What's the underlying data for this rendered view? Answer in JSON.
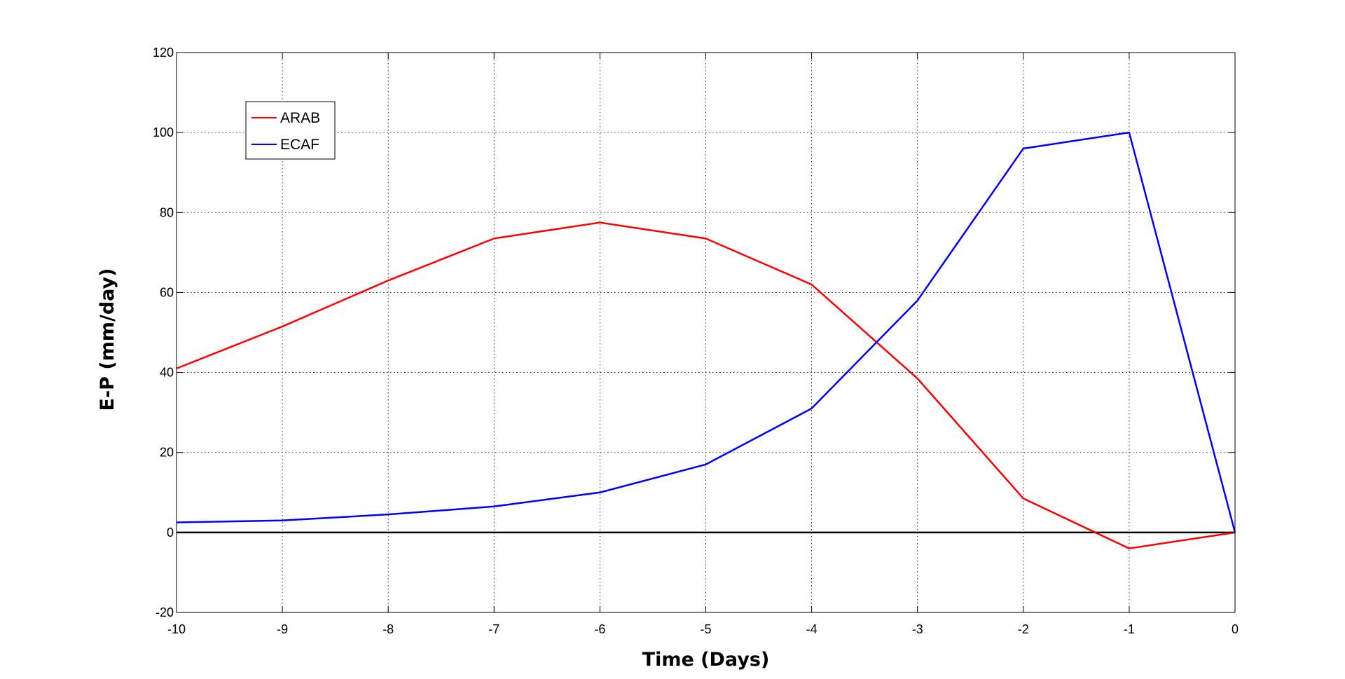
{
  "chart_data": {
    "type": "line",
    "title": "",
    "xlabel": "Time (Days)",
    "ylabel": "E-P (mm/day)",
    "x": [
      -10,
      -9,
      -8,
      -7,
      -6,
      -5,
      -4,
      -3,
      -2,
      -1,
      0
    ],
    "xlim": [
      -10,
      0
    ],
    "ylim": [
      -20,
      120
    ],
    "xticks": [
      "-10",
      "-9",
      "-8",
      "-7",
      "-6",
      "-5",
      "-4",
      "-3",
      "-2",
      "-1",
      "0"
    ],
    "yticks": [
      "-20",
      "0",
      "20",
      "40",
      "60",
      "80",
      "100",
      "120"
    ],
    "grid": true,
    "legend_position": "top-left",
    "series": [
      {
        "name": "ARAB",
        "color": "#ff0000",
        "values": [
          41,
          51.5,
          63,
          73.5,
          77.5,
          73.5,
          62,
          38.5,
          8.5,
          -4,
          0
        ]
      },
      {
        "name": "ECAF",
        "color": "#0000ff",
        "values": [
          2.5,
          3,
          4.5,
          6.5,
          10,
          17,
          31,
          58,
          96,
          100,
          0
        ]
      }
    ],
    "reference_line": {
      "y": 0,
      "color": "#000000"
    }
  }
}
